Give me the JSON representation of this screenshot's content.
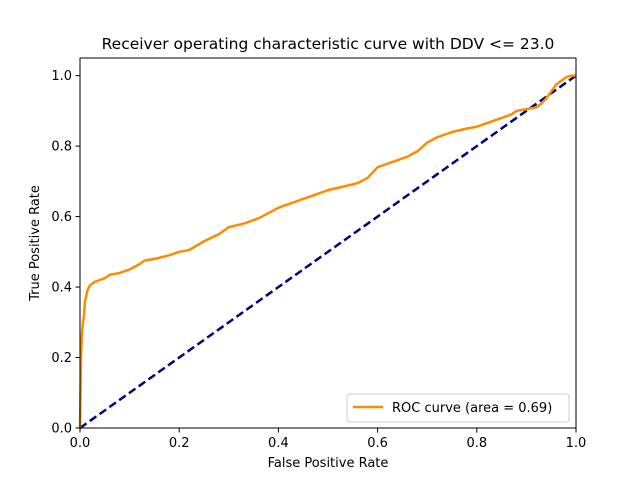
{
  "chart_data": {
    "type": "line",
    "title": "Receiver operating characteristic curve with DDV <= 23.0",
    "xlabel": "False Positive Rate",
    "ylabel": "True Positive Rate",
    "xlim": [
      0.0,
      1.0
    ],
    "ylim": [
      0.0,
      1.05
    ],
    "xticks": [
      0.0,
      0.2,
      0.4,
      0.6,
      0.8,
      1.0
    ],
    "yticks": [
      0.0,
      0.2,
      0.4,
      0.6,
      0.8,
      1.0
    ],
    "xtick_labels": [
      "0.0",
      "0.2",
      "0.4",
      "0.6",
      "0.8",
      "1.0"
    ],
    "ytick_labels": [
      "0.0",
      "0.2",
      "0.4",
      "0.6",
      "0.8",
      "1.0"
    ],
    "grid": false,
    "legend_position": "bottom-right",
    "series": [
      {
        "name": "ROC curve (area = 0.69)",
        "color": "#ff8c00",
        "line_style": "solid",
        "x": [
          0.0,
          0.002,
          0.004,
          0.006,
          0.008,
          0.01,
          0.015,
          0.02,
          0.03,
          0.04,
          0.05,
          0.06,
          0.08,
          0.1,
          0.12,
          0.13,
          0.15,
          0.18,
          0.2,
          0.22,
          0.25,
          0.28,
          0.3,
          0.33,
          0.36,
          0.38,
          0.4,
          0.42,
          0.45,
          0.48,
          0.5,
          0.53,
          0.56,
          0.58,
          0.6,
          0.63,
          0.66,
          0.68,
          0.7,
          0.72,
          0.75,
          0.78,
          0.8,
          0.82,
          0.85,
          0.87,
          0.88,
          0.9,
          0.92,
          0.93,
          0.94,
          0.95,
          0.96,
          0.97,
          0.98,
          0.99,
          1.0
        ],
        "y": [
          0.0,
          0.2,
          0.27,
          0.3,
          0.32,
          0.36,
          0.39,
          0.405,
          0.415,
          0.42,
          0.425,
          0.435,
          0.44,
          0.45,
          0.465,
          0.475,
          0.48,
          0.49,
          0.5,
          0.505,
          0.53,
          0.55,
          0.57,
          0.58,
          0.595,
          0.61,
          0.625,
          0.635,
          0.65,
          0.665,
          0.675,
          0.685,
          0.695,
          0.71,
          0.74,
          0.755,
          0.77,
          0.785,
          0.81,
          0.825,
          0.84,
          0.85,
          0.855,
          0.865,
          0.88,
          0.89,
          0.9,
          0.905,
          0.91,
          0.92,
          0.935,
          0.955,
          0.975,
          0.985,
          0.995,
          1.0,
          1.0
        ]
      },
      {
        "name": "",
        "color": "#000080",
        "line_style": "dashed",
        "x": [
          0.0,
          1.0
        ],
        "y": [
          0.0,
          1.0
        ]
      }
    ]
  }
}
